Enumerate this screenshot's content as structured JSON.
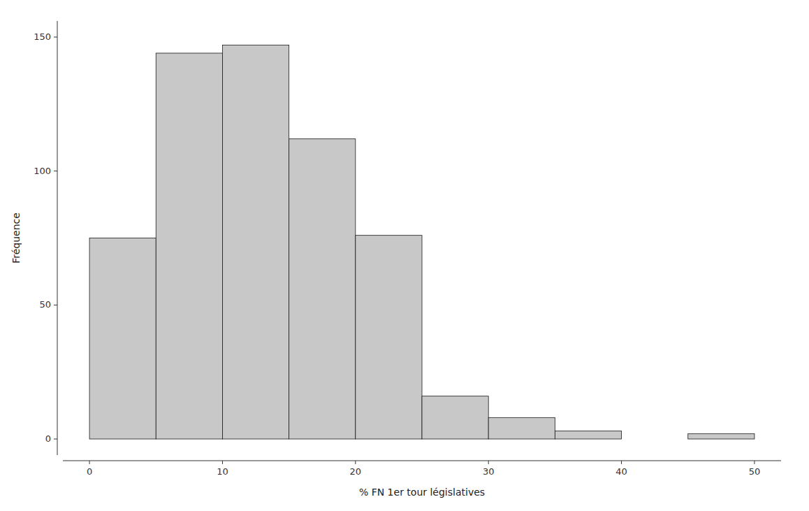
{
  "chart_data": {
    "type": "histogram",
    "bins": [
      0,
      5,
      10,
      15,
      20,
      25,
      30,
      35,
      40,
      45,
      50
    ],
    "values": [
      75,
      144,
      147,
      112,
      76,
      16,
      8,
      3,
      0,
      2
    ],
    "color": "#c8c8c8",
    "xlabel": "% FN 1er tour législatives",
    "ylabel": "Fréquence",
    "xlim": [
      -2,
      52
    ],
    "ylim": [
      -6,
      156
    ],
    "xticks": [
      0,
      10,
      20,
      30,
      40,
      50
    ],
    "yticks": [
      0,
      50,
      100,
      150
    ],
    "grid": false
  }
}
